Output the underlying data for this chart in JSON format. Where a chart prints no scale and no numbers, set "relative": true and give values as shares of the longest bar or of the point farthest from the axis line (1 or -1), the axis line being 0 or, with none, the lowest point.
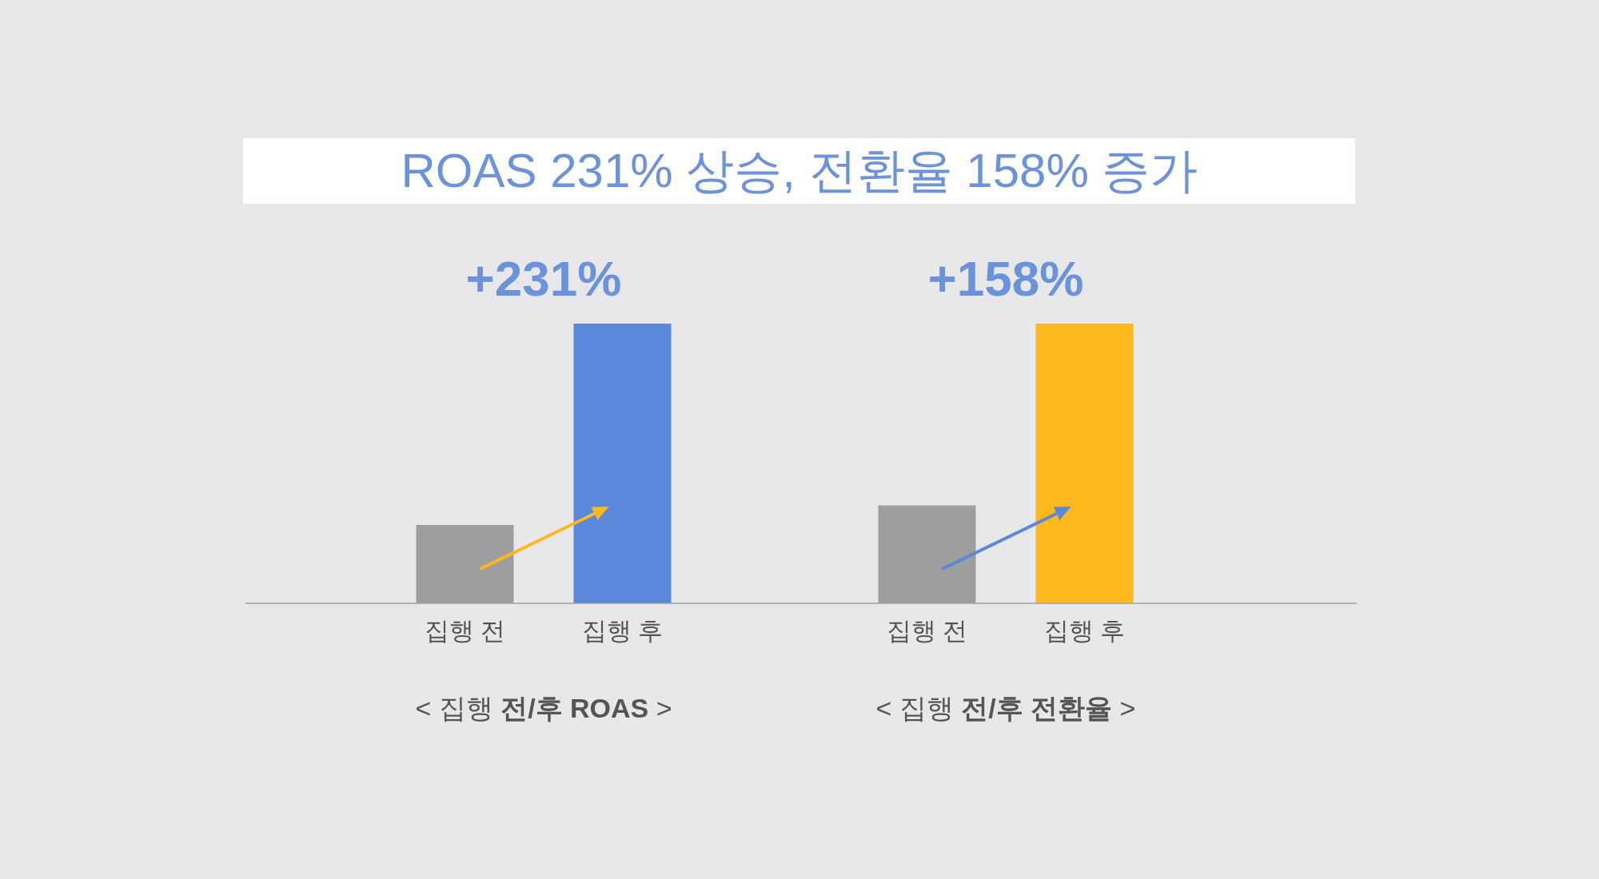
{
  "chart_data": [
    {
      "type": "other",
      "title": "ROAS 231% 상승, 전환율 158% 증가"
    },
    {
      "type": "bar",
      "relative": true,
      "subtitle": "+231%",
      "xlabel": "< 집행 **전/후 ROAS** >",
      "categories": [
        "집행 전",
        "집행 후"
      ],
      "values": [
        0.28,
        1
      ],
      "colors": [
        "#9e9e9e",
        "#5b88db"
      ]
    },
    {
      "type": "bar",
      "relative": true,
      "subtitle": "+158%",
      "xlabel": "< 집행 **전/후 전환율** >",
      "categories": [
        "집행 전",
        "집행 후"
      ],
      "values": [
        0.35,
        1
      ],
      "colors": [
        "#9e9e9e",
        "#fdb81e"
      ]
    }
  ]
}
